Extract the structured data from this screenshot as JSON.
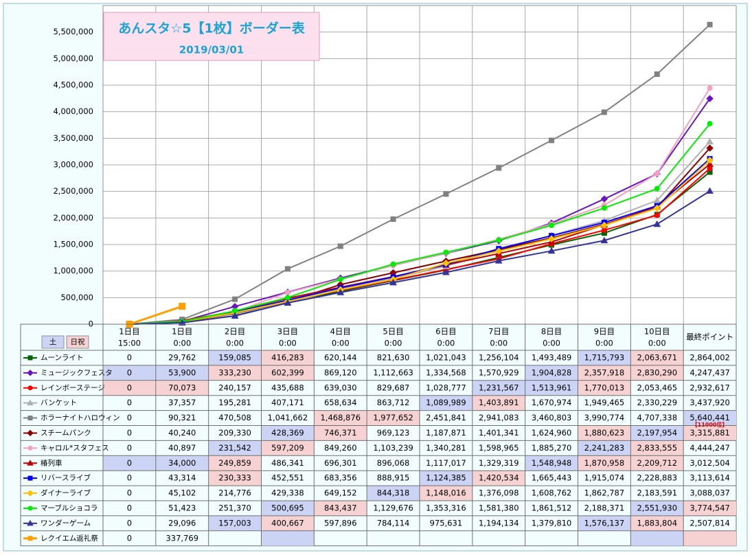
{
  "chart_data": {
    "type": "line",
    "title": "あんスタ☆5【1枚】ボーダー表",
    "subtitle": "2019/03/01",
    "categories": [
      [
        "1日目",
        "15:00"
      ],
      [
        "1日目",
        "0:00"
      ],
      [
        "2日目",
        "0:00"
      ],
      [
        "3日目",
        "0:00"
      ],
      [
        "4日目",
        "0:00"
      ],
      [
        "5日目",
        "0:00"
      ],
      [
        "6日目",
        "0:00"
      ],
      [
        "7日目",
        "0:00"
      ],
      [
        "8日目",
        "0:00"
      ],
      [
        "9日目",
        "0:00"
      ],
      [
        "10日目",
        "0:00"
      ],
      [
        "最終ポイント"
      ]
    ],
    "ylim": [
      0,
      6000000
    ],
    "yticks": [
      0,
      {
        "value": 500000,
        "label": "500,000"
      },
      {
        "value": 1000000,
        "label": "1,000,000"
      },
      {
        "value": 1500000,
        "label": "1,500,000"
      },
      {
        "value": 2000000,
        "label": "2,000,000"
      },
      {
        "value": 2500000,
        "label": "2,500,000"
      },
      {
        "value": 3000000,
        "label": "3,000,000"
      },
      {
        "value": 3500000,
        "label": "3,500,000"
      },
      {
        "value": 4000000,
        "label": "4,000,000"
      },
      {
        "value": 4500000,
        "label": "4,500,000"
      },
      {
        "value": 5000000,
        "label": "5,000,000"
      },
      {
        "value": 5500000,
        "label": "5,500,000"
      }
    ],
    "grid": true,
    "legend_key": [
      {
        "label": "土",
        "color": "#cbd4f5"
      },
      {
        "label": "日祝",
        "color": "#f6d2d2"
      }
    ],
    "annotations": [
      {
        "text": "【11000位】",
        "series": 4,
        "index": 11,
        "color": "#e00000"
      }
    ],
    "series": [
      {
        "name": "ムーンライト",
        "color": "#006400",
        "marker": "square",
        "values": [
          0,
          29762,
          159085,
          416283,
          620144,
          821630,
          1021043,
          1256104,
          1493489,
          1715793,
          2063671,
          2864002
        ],
        "value_labels": [
          "0",
          "29,762",
          "159,085",
          "416,283",
          "620,144",
          "821,630",
          "1,021,043",
          "1,256,104",
          "1,493,489",
          "1,715,793",
          "2,063,671",
          "2,864,002"
        ],
        "cell_fills": [
          null,
          null,
          "#cbd4f5",
          "#f6d2d2",
          null,
          null,
          null,
          null,
          null,
          "#cbd4f5",
          "#f6d2d2",
          null
        ]
      },
      {
        "name": "ミュージックフェスタ",
        "color": "#6a16c0",
        "marker": "diamond",
        "values": [
          0,
          53900,
          333230,
          602399,
          869120,
          1112663,
          1334568,
          1570929,
          1904828,
          2357918,
          2830290,
          4247437
        ],
        "value_labels": [
          "0",
          "53,900",
          "333,230",
          "602,399",
          "869,120",
          "1,112,663",
          "1,334,568",
          "1,570,929",
          "1,904,828",
          "2,357,918",
          "2,830,290",
          "4,247,437"
        ],
        "cell_fills": [
          "#cbd4f5",
          "#cbd4f5",
          "#f6d2d2",
          "#f6d2d2",
          null,
          null,
          null,
          null,
          "#cbd4f5",
          "#f6d2d2",
          "#f6d2d2",
          null
        ]
      },
      {
        "name": "レインボーステージ",
        "color": "#ff0000",
        "marker": "circle",
        "values": [
          0,
          70073,
          240157,
          435688,
          639030,
          829687,
          1028777,
          1231567,
          1513961,
          1770013,
          2053465,
          2932617
        ],
        "value_labels": [
          "0",
          "70,073",
          "240,157",
          "435,688",
          "639,030",
          "829,687",
          "1,028,777",
          "1,231,567",
          "1,513,961",
          "1,770,013",
          "2,053,465",
          "2,932,617"
        ],
        "cell_fills": [
          "#f6d2d2",
          "#f6d2d2",
          null,
          null,
          null,
          null,
          null,
          "#cbd4f5",
          "#cbd4f5",
          "#f6d2d2",
          null,
          null
        ]
      },
      {
        "name": "バンケット",
        "color": "#b0b0b0",
        "marker": "triangle",
        "values": [
          0,
          37357,
          195281,
          407171,
          658634,
          863712,
          1089989,
          1403891,
          1670974,
          1949465,
          2330229,
          3437920
        ],
        "value_labels": [
          "0",
          "37,357",
          "195,281",
          "407,171",
          "658,634",
          "863,712",
          "1,089,989",
          "1,403,891",
          "1,670,974",
          "1,949,465",
          "2,330,229",
          "3,437,920"
        ],
        "cell_fills": [
          null,
          null,
          null,
          null,
          null,
          null,
          "#cbd4f5",
          "#f6d2d2",
          null,
          null,
          null,
          null
        ]
      },
      {
        "name": "ホラーナイトハロウィン",
        "color": "#808080",
        "marker": "square",
        "values": [
          0,
          90321,
          470508,
          1041662,
          1468876,
          1977652,
          2451841,
          2941083,
          3460803,
          3990774,
          4707338,
          5640441
        ],
        "value_labels": [
          "0",
          "90,321",
          "470,508",
          "1,041,662",
          "1,468,876",
          "1,977,652",
          "2,451,841",
          "2,941,083",
          "3,460,803",
          "3,990,774",
          "4,707,338",
          "5,640,441"
        ],
        "cell_fills": [
          null,
          null,
          null,
          null,
          "#f6d2d2",
          "#f6d2d2",
          null,
          null,
          null,
          null,
          null,
          "#cbd4f5"
        ]
      },
      {
        "name": "スチームパンク",
        "color": "#8b0000",
        "marker": "diamond",
        "values": [
          0,
          40240,
          209330,
          428369,
          746371,
          969123,
          1187871,
          1401341,
          1624960,
          1880623,
          2197954,
          3315881
        ],
        "value_labels": [
          "0",
          "40,240",
          "209,330",
          "428,369",
          "746,371",
          "969,123",
          "1,187,871",
          "1,401,341",
          "1,624,960",
          "1,880,623",
          "2,197,954",
          "3,315,881"
        ],
        "cell_fills": [
          null,
          null,
          null,
          "#cbd4f5",
          "#f6d2d2",
          null,
          null,
          null,
          null,
          "#f6d2d2",
          "#cbd4f5",
          "#f6d2d2"
        ]
      },
      {
        "name": "キャロル*スタフェス",
        "color": "#f4a0c4",
        "marker": "circle",
        "values": [
          0,
          40897,
          231542,
          597209,
          849260,
          1103239,
          1340281,
          1598965,
          1885270,
          2241283,
          2833555,
          4444247
        ],
        "value_labels": [
          "0",
          "40,897",
          "231,542",
          "597,209",
          "849,260",
          "1,103,239",
          "1,340,281",
          "1,598,965",
          "1,885,270",
          "2,241,283",
          "2,833,555",
          "4,444,247"
        ],
        "cell_fills": [
          null,
          null,
          "#cbd4f5",
          "#f6d2d2",
          null,
          null,
          null,
          null,
          null,
          "#cbd4f5",
          "#f6d2d2",
          null
        ]
      },
      {
        "name": "椿列車",
        "color": "#c00000",
        "marker": "triangle",
        "values": [
          0,
          34000,
          249859,
          486341,
          696301,
          896068,
          1117017,
          1329319,
          1548948,
          1870958,
          2209712,
          3012504
        ],
        "value_labels": [
          "0",
          "34,000",
          "249,859",
          "486,341",
          "696,301",
          "896,068",
          "1,117,017",
          "1,329,319",
          "1,548,948",
          "1,870,958",
          "2,209,712",
          "3,012,504"
        ],
        "cell_fills": [
          "#cbd4f5",
          "#cbd4f5",
          "#f6d2d2",
          null,
          null,
          null,
          null,
          null,
          "#cbd4f5",
          "#f6d2d2",
          "#f6d2d2",
          null
        ]
      },
      {
        "name": "リバースライブ",
        "color": "#0000ff",
        "marker": "square",
        "values": [
          0,
          43314,
          230333,
          452551,
          683356,
          888915,
          1124385,
          1420534,
          1665443,
          1915074,
          2228883,
          3113614
        ],
        "value_labels": [
          "0",
          "43,314",
          "230,333",
          "452,551",
          "683,356",
          "888,915",
          "1,124,385",
          "1,420,534",
          "1,665,443",
          "1,915,074",
          "2,228,883",
          "3,113,614"
        ],
        "cell_fills": [
          null,
          null,
          "#f6d2d2",
          null,
          null,
          null,
          "#cbd4f5",
          "#f6d2d2",
          null,
          null,
          null,
          null
        ]
      },
      {
        "name": "ダイナーライブ",
        "color": "#ffc000",
        "marker": "diamond",
        "values": [
          0,
          45102,
          214776,
          429338,
          649152,
          844318,
          1148016,
          1376098,
          1608762,
          1862787,
          2183591,
          3088037
        ],
        "value_labels": [
          "0",
          "45,102",
          "214,776",
          "429,338",
          "649,152",
          "844,318",
          "1,148,016",
          "1,376,098",
          "1,608,762",
          "1,862,787",
          "2,183,591",
          "3,088,037"
        ],
        "cell_fills": [
          null,
          null,
          null,
          null,
          null,
          "#cbd4f5",
          "#f6d2d2",
          null,
          null,
          null,
          null,
          null
        ]
      },
      {
        "name": "マーブルショコラ",
        "color": "#00ee00",
        "marker": "circle",
        "values": [
          0,
          51423,
          251370,
          500695,
          843437,
          1129676,
          1353316,
          1581380,
          1861512,
          2188371,
          2551930,
          3774547
        ],
        "value_labels": [
          "0",
          "51,423",
          "251,370",
          "500,695",
          "843,437",
          "1,129,676",
          "1,353,316",
          "1,581,380",
          "1,861,512",
          "2,188,371",
          "2,551,930",
          "3,774,547"
        ],
        "cell_fills": [
          null,
          null,
          null,
          "#cbd4f5",
          "#f6d2d2",
          null,
          null,
          null,
          null,
          null,
          "#cbd4f5",
          "#f6d2d2"
        ]
      },
      {
        "name": "ワンダーゲーム",
        "color": "#333399",
        "marker": "triangle",
        "values": [
          0,
          29096,
          157003,
          400667,
          597896,
          784114,
          975631,
          1194134,
          1379810,
          1576137,
          1883804,
          2507814
        ],
        "value_labels": [
          "0",
          "29,096",
          "157,003",
          "400,667",
          "597,896",
          "784,114",
          "975,631",
          "1,194,134",
          "1,379,810",
          "1,576,137",
          "1,883,804",
          "2,507,814"
        ],
        "cell_fills": [
          null,
          null,
          "#cbd4f5",
          "#f6d2d2",
          null,
          null,
          null,
          null,
          null,
          "#cbd4f5",
          "#f6d2d2",
          null
        ]
      },
      {
        "name": "レクイエム返礼祭",
        "color": "#ffa000",
        "marker": "square",
        "line_width": 3,
        "values": [
          0,
          337769,
          null,
          null,
          null,
          null,
          null,
          null,
          null,
          null,
          null,
          null
        ],
        "value_labels": [
          "0",
          "337,769",
          null,
          null,
          null,
          null,
          null,
          null,
          null,
          null,
          null,
          null
        ],
        "cell_fills": [
          null,
          null,
          null,
          "#cbd4f5",
          null,
          null,
          null,
          null,
          null,
          null,
          "#cbd4f5",
          "#f6d2d2"
        ]
      }
    ]
  }
}
